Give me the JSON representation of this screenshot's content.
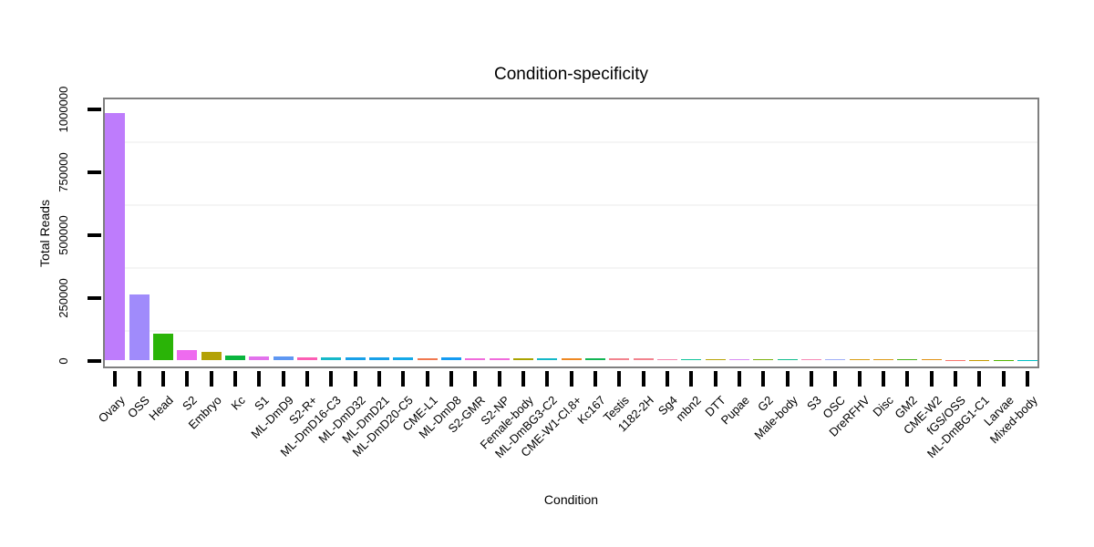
{
  "chart_data": {
    "type": "bar",
    "title": "Condition-specificity",
    "xlabel": "Condition",
    "ylabel": "Total Reads",
    "ylim": [
      0,
      1042000
    ],
    "yticks": [
      0,
      250000,
      500000,
      750000,
      1000000
    ],
    "minor_gridlines": [
      125000,
      375000,
      625000,
      875000
    ],
    "legend": "none",
    "grid": "faint horizontal minor gridlines on white panel with gray border",
    "categories": [
      "Ovary",
      "OSS",
      "Head",
      "S2",
      "Embryo",
      "Kc",
      "S1",
      "ML-DmD9",
      "S2-R+",
      "ML-DmD16-C3",
      "ML-DmD32",
      "ML-DmD21",
      "ML-DmD20-C5",
      "CME-L1",
      "ML-DmD8",
      "S2-GMR",
      "S2-NP",
      "Female-body",
      "ML-DmBG3-C2",
      "CME-W1-Cl.8+",
      "Kc167",
      "Testis",
      "1182-2H",
      "Sg4",
      "mbn2",
      "DTT",
      "Pupae",
      "G2",
      "Male-body",
      "S3",
      "OSC",
      "DreRFHV",
      "Disc",
      "GM2",
      "CME-W2",
      "fGS/OSS",
      "ML-DmBG1-C1",
      "Larvae",
      "Mixed-body"
    ],
    "values": [
      985000,
      263000,
      108000,
      42000,
      34000,
      19000,
      18000,
      14500,
      12000,
      13000,
      11000,
      11000,
      11000,
      10000,
      11000,
      8500,
      8500,
      8500,
      8500,
      8500,
      9000,
      8500,
      8500,
      7000,
      7000,
      7000,
      6000,
      6000,
      6000,
      6000,
      6000,
      5000,
      5000,
      5000,
      5000,
      1200,
      900,
      700,
      500
    ],
    "bar_colors": [
      "#be7cfc",
      "#a08bfb",
      "#2ab407",
      "#ee6bef",
      "#b3a207",
      "#0ab53e",
      "#e272ec",
      "#5e97f2",
      "#fc5eb4",
      "#16b8c8",
      "#18a0e8",
      "#18a0e8",
      "#14a9e8",
      "#f0784f",
      "#149bf2",
      "#f06cdc",
      "#f06cdc",
      "#aaa300",
      "#14b8c8",
      "#ee8822",
      "#12b554",
      "#f2838e",
      "#f2838e",
      "#f585ae",
      "#0fc49b",
      "#b8a407",
      "#d98cf5",
      "#7cb20d",
      "#12bd8e",
      "#f787b4",
      "#9faef8",
      "#d89e12",
      "#dd9a15",
      "#47b117",
      "#e09112",
      "#f8766d",
      "#c49a00",
      "#53b400",
      "#00bfc4"
    ],
    "panel_border_color": "#7f7f7f",
    "tick_color": "#000000",
    "text_color": "#000000"
  }
}
